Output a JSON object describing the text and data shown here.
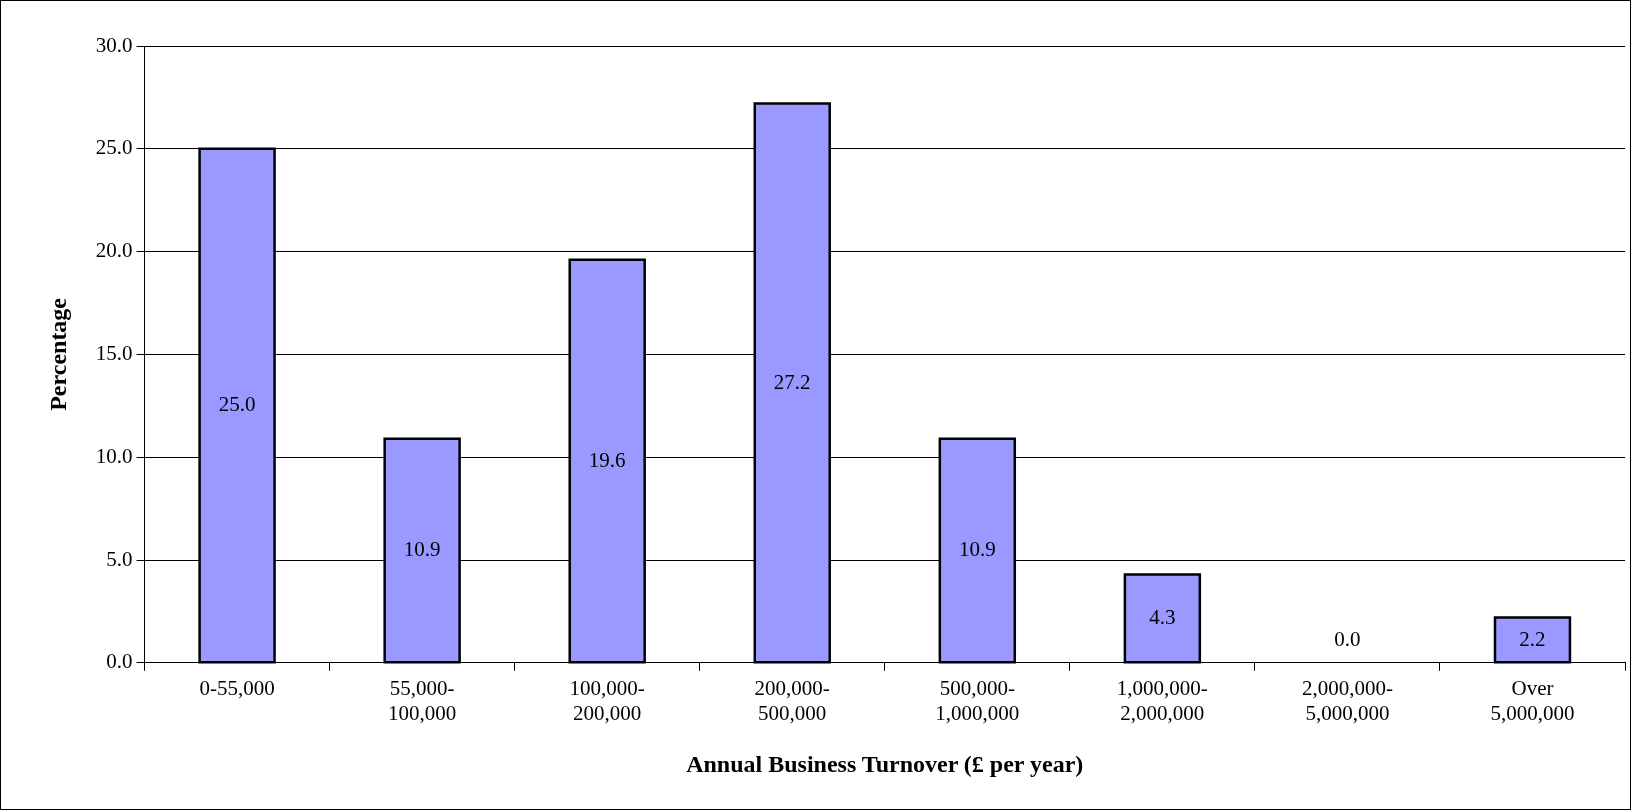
{
  "chart_data": {
    "type": "bar",
    "xlabel": "Annual Business Turnover (£ per year)",
    "ylabel": "Percentage",
    "categories": [
      "0-55,000",
      "55,000-\n100,000",
      "100,000-\n200,000",
      "200,000-\n500,000",
      "500,000-\n1,000,000",
      "1,000,000-\n2,000,000",
      "2,000,000-\n5,000,000",
      "Over\n5,000,000"
    ],
    "values": [
      25.0,
      10.9,
      19.6,
      27.2,
      10.9,
      4.3,
      0.0,
      2.2
    ],
    "value_labels": [
      "25.0",
      "10.9",
      "19.6",
      "27.2",
      "10.9",
      "4.3",
      "0.0",
      "2.2"
    ],
    "color": "#9999ff",
    "ylim": [
      0,
      30
    ],
    "yticks": [
      {
        "value": 0,
        "label": "0.0"
      },
      {
        "value": 5,
        "label": "5.0"
      },
      {
        "value": 10,
        "label": "10.0"
      },
      {
        "value": 15,
        "label": "15.0"
      },
      {
        "value": 20,
        "label": "20.0"
      },
      {
        "value": 25,
        "label": "25.0"
      },
      {
        "value": 30,
        "label": "30.0"
      }
    ],
    "grid": "y",
    "legend": false
  }
}
